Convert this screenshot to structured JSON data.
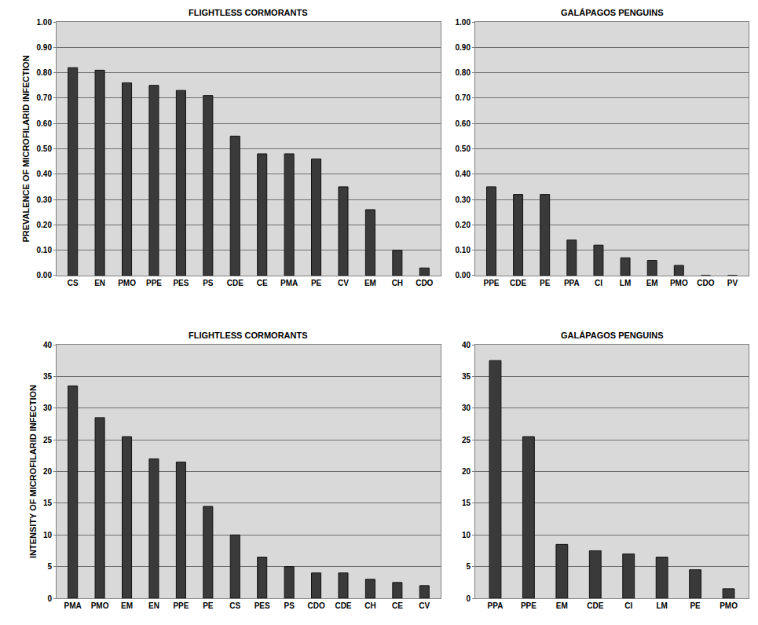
{
  "chart_data": [
    {
      "type": "bar",
      "title": "FLIGHTLESS CORMORANTS",
      "y_label": "PREVALENCE OF MICROFILARID INFECTION",
      "categories": [
        "CS",
        "EN",
        "PMO",
        "PPE",
        "PES",
        "PS",
        "CDE",
        "CE",
        "PMA",
        "PE",
        "CV",
        "EM",
        "CH",
        "CDO"
      ],
      "values": [
        0.82,
        0.81,
        0.76,
        0.75,
        0.73,
        0.71,
        0.55,
        0.48,
        0.48,
        0.46,
        0.35,
        0.26,
        0.1,
        0.03
      ],
      "color": "#3a3a3a",
      "grid": true,
      "ylim": [
        0,
        1
      ],
      "yticks": [
        {
          "value": 0,
          "label": "0.00"
        },
        {
          "value": 0.1,
          "label": "0.10"
        },
        {
          "value": 0.2,
          "label": "0.20"
        },
        {
          "value": 0.3,
          "label": "0.30"
        },
        {
          "value": 0.4,
          "label": "0.40"
        },
        {
          "value": 0.5,
          "label": "0.50"
        },
        {
          "value": 0.6,
          "label": "0.60"
        },
        {
          "value": 0.7,
          "label": "0.70"
        },
        {
          "value": 0.8,
          "label": "0.80"
        },
        {
          "value": 0.9,
          "label": "0.90"
        },
        {
          "value": 1,
          "label": "1.00"
        }
      ]
    },
    {
      "type": "bar",
      "title": "GALÁPAGOS PENGUINS",
      "categories": [
        "PPE",
        "CDE",
        "PE",
        "PPA",
        "CI",
        "LM",
        "EM",
        "PMO",
        "CDO",
        "PV"
      ],
      "values": [
        0.35,
        0.32,
        0.32,
        0.14,
        0.12,
        0.07,
        0.06,
        0.04,
        0,
        0
      ],
      "color": "#3a3a3a",
      "grid": true,
      "ylim": [
        0,
        1
      ],
      "yticks": [
        {
          "value": 0,
          "label": "0.00"
        },
        {
          "value": 0.1,
          "label": "0.10"
        },
        {
          "value": 0.2,
          "label": "0.20"
        },
        {
          "value": 0.3,
          "label": "0.30"
        },
        {
          "value": 0.4,
          "label": "0.40"
        },
        {
          "value": 0.5,
          "label": "0.50"
        },
        {
          "value": 0.6,
          "label": "0.60"
        },
        {
          "value": 0.7,
          "label": "0.70"
        },
        {
          "value": 0.8,
          "label": "0.80"
        },
        {
          "value": 0.9,
          "label": "0.90"
        },
        {
          "value": 1,
          "label": "1.00"
        }
      ]
    },
    {
      "type": "bar",
      "title": "FLIGHTLESS CORMORANTS",
      "y_label": "INTENSITY OF MICROFILARID INFECTION",
      "categories": [
        "PMA",
        "PMO",
        "EM",
        "EN",
        "PPE",
        "PE",
        "CS",
        "PES",
        "PS",
        "CDO",
        "CDE",
        "CH",
        "CE",
        "CV"
      ],
      "values": [
        33.5,
        28.5,
        25.5,
        22,
        21.5,
        14.5,
        10,
        6.5,
        5,
        4,
        4,
        3,
        2.5,
        2
      ],
      "color": "#3a3a3a",
      "grid": true,
      "ylim": [
        0,
        40
      ],
      "yticks": [
        0,
        5,
        10,
        15,
        20,
        25,
        30,
        35,
        40
      ]
    },
    {
      "type": "bar",
      "title": "GALÁPAGOS PENGUINS",
      "categories": [
        "PPA",
        "PPE",
        "EM",
        "CDE",
        "CI",
        "LM",
        "PE",
        "PMO"
      ],
      "values": [
        37.5,
        25.5,
        8.5,
        7.5,
        7,
        6.5,
        4.5,
        1.5
      ],
      "color": "#3a3a3a",
      "grid": true,
      "ylim": [
        0,
        40
      ],
      "yticks": [
        0,
        5,
        10,
        15,
        20,
        25,
        30,
        35,
        40
      ]
    }
  ]
}
